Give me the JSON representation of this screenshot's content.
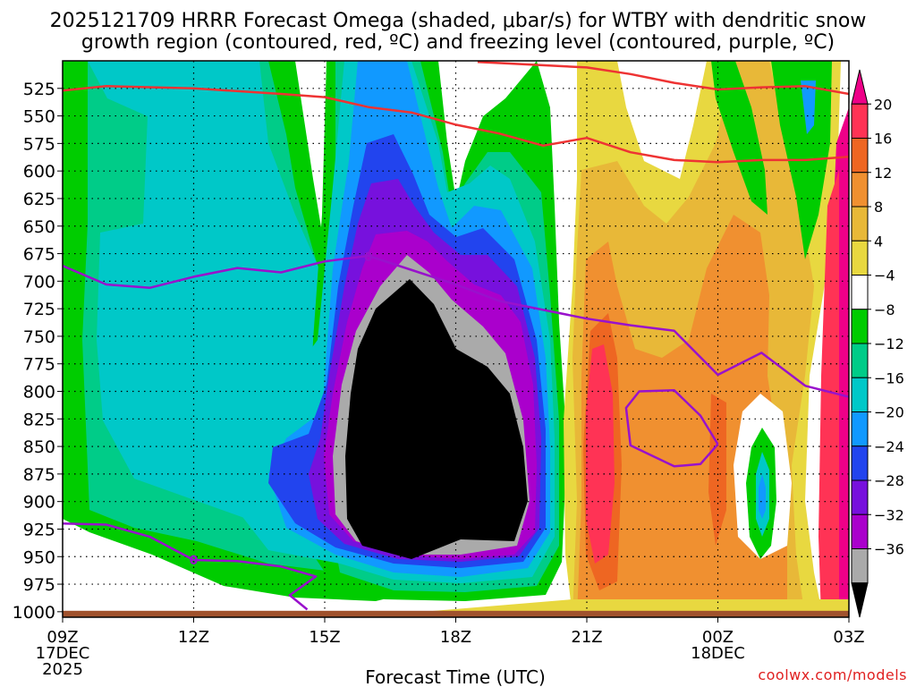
{
  "title": {
    "line1": "2025121709 HRRR Forecast Omega (shaded, μbar/s) for WTBY with dendritic snow",
    "line2": "growth region (contoured, red, ºC) and freezing level (contoured, purple, ºC)"
  },
  "xlabel": "Forecast Time (UTC)",
  "credit": "coolwx.com/models",
  "chart_data": {
    "type": "heatmap",
    "variable": "Omega",
    "units": "μbar/s",
    "y_axis": {
      "name": "pressure (hPa)",
      "ylim": [
        1005,
        500
      ],
      "ticks": [
        525,
        550,
        575,
        600,
        625,
        650,
        675,
        700,
        725,
        750,
        775,
        800,
        825,
        850,
        875,
        900,
        925,
        950,
        975,
        1000
      ]
    },
    "x_axis": {
      "xlim_hours": [
        9,
        27
      ],
      "ticks": [
        {
          "hour": 9,
          "label": "09Z",
          "sub1": "17DEC",
          "sub2": "2025"
        },
        {
          "hour": 12,
          "label": "12Z",
          "sub1": "",
          "sub2": ""
        },
        {
          "hour": 15,
          "label": "15Z",
          "sub1": "",
          "sub2": ""
        },
        {
          "hour": 18,
          "label": "18Z",
          "sub1": "",
          "sub2": ""
        },
        {
          "hour": 21,
          "label": "21Z",
          "sub1": "",
          "sub2": ""
        },
        {
          "hour": 24,
          "label": "00Z",
          "sub1": "18DEC",
          "sub2": ""
        },
        {
          "hour": 27,
          "label": "03Z",
          "sub1": "",
          "sub2": ""
        }
      ]
    },
    "colorbar": {
      "labels": [
        "20",
        "16",
        "12",
        "8",
        "4",
        "−4",
        "−8",
        "−12",
        "−16",
        "−20",
        "−24",
        "−28",
        "−32",
        "−36"
      ],
      "bins": [
        {
          "lo": 20,
          "hi": 24,
          "color": "#ee0088"
        },
        {
          "lo": 16,
          "hi": 20,
          "color": "#ff3355"
        },
        {
          "lo": 12,
          "hi": 16,
          "color": "#ee6622"
        },
        {
          "lo": 8,
          "hi": 12,
          "color": "#f09030"
        },
        {
          "lo": 4,
          "hi": 8,
          "color": "#e8b838"
        },
        {
          "lo": 0,
          "hi": 4,
          "color": "#e8d840"
        },
        {
          "lo": -4,
          "hi": 4,
          "color": "#ffffff"
        },
        {
          "lo": -8,
          "hi": -4,
          "color": "#00cc00"
        },
        {
          "lo": -12,
          "hi": -8,
          "color": "#00cc88"
        },
        {
          "lo": -16,
          "hi": -12,
          "color": "#00c8c8"
        },
        {
          "lo": -20,
          "hi": -16,
          "color": "#1199ff"
        },
        {
          "lo": -24,
          "hi": -20,
          "color": "#2244ee"
        },
        {
          "lo": -28,
          "hi": -24,
          "color": "#7711dd"
        },
        {
          "lo": -32,
          "hi": -28,
          "color": "#aa00cc"
        },
        {
          "lo": -36,
          "hi": -32,
          "color": "#aaaaaa"
        },
        {
          "lo": -40,
          "hi": -36,
          "color": "#000000"
        }
      ]
    },
    "dgz_contours_color": "#ee3333",
    "dgz_contours": [
      {
        "points": [
          [
            9,
            527
          ],
          [
            10,
            523
          ],
          [
            12,
            525
          ],
          [
            14,
            530
          ],
          [
            15,
            533
          ],
          [
            16,
            542
          ],
          [
            17,
            547
          ],
          [
            18,
            558
          ],
          [
            19,
            566
          ],
          [
            20,
            577
          ],
          [
            21,
            570
          ],
          [
            22,
            583
          ],
          [
            23,
            590
          ],
          [
            24,
            592
          ],
          [
            25,
            590
          ],
          [
            26,
            590
          ],
          [
            27,
            587
          ]
        ]
      },
      {
        "points": [
          [
            18.5,
            501
          ],
          [
            21,
            506
          ],
          [
            22,
            512
          ],
          [
            23,
            520
          ],
          [
            24,
            526
          ],
          [
            25,
            524
          ],
          [
            26,
            523
          ],
          [
            27,
            530
          ]
        ]
      }
    ],
    "freezing_contours_color": "#9911cc",
    "freezing_contours": [
      {
        "points": [
          [
            9,
            686
          ],
          [
            10,
            703
          ],
          [
            11,
            706
          ],
          [
            12,
            696
          ],
          [
            13,
            688
          ],
          [
            14,
            692
          ],
          [
            15,
            682
          ],
          [
            16,
            677
          ],
          [
            17,
            690
          ],
          [
            18,
            703
          ],
          [
            19,
            718
          ],
          [
            20,
            726
          ],
          [
            21,
            734
          ],
          [
            22,
            740
          ],
          [
            23,
            745
          ],
          [
            24,
            785
          ],
          [
            25,
            765
          ],
          [
            26,
            795
          ],
          [
            27,
            805
          ]
        ]
      },
      {
        "points": [
          [
            9,
            920
          ],
          [
            10,
            921
          ],
          [
            11,
            932
          ],
          [
            12,
            953
          ],
          [
            13,
            954
          ],
          [
            14,
            959
          ],
          [
            14.8,
            968
          ],
          [
            14.2,
            985
          ],
          [
            14.6,
            998
          ]
        ]
      },
      {
        "points": [
          [
            24.0,
            848
          ],
          [
            23.6,
            866
          ],
          [
            23.0,
            868
          ],
          [
            22.0,
            849
          ],
          [
            21.9,
            815
          ],
          [
            22.2,
            800
          ],
          [
            23.0,
            799
          ],
          [
            23.6,
            822
          ],
          [
            24.0,
            848
          ]
        ]
      }
    ],
    "contour_labels": [
      {
        "text": "0",
        "hour": 12.0,
        "p": 953
      },
      {
        "text": "0",
        "hour": 16.0,
        "p": 678
      }
    ],
    "terrain_pressure": 1000
  }
}
